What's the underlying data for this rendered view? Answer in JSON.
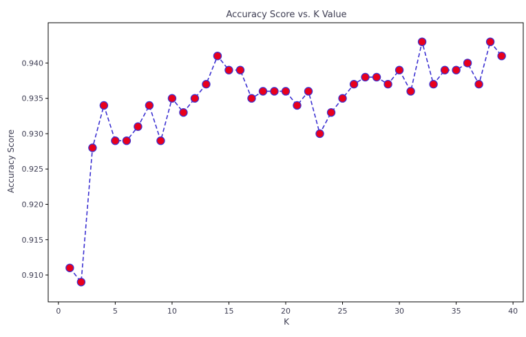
{
  "chart_data": {
    "type": "line",
    "title": "Accuracy Score vs. K Value",
    "xlabel": "K",
    "ylabel": "Accuracy Score",
    "xlim": [
      -0.9,
      40.9
    ],
    "ylim": [
      0.9062,
      0.9457
    ],
    "xticks": [
      0,
      5,
      10,
      15,
      20,
      25,
      30,
      35,
      40
    ],
    "xtick_labels": [
      "0",
      "5",
      "10",
      "15",
      "20",
      "25",
      "30",
      "35",
      "40"
    ],
    "yticks": [
      0.91,
      0.915,
      0.92,
      0.925,
      0.93,
      0.935,
      0.94
    ],
    "ytick_labels": [
      "0.910",
      "0.915",
      "0.920",
      "0.925",
      "0.930",
      "0.935",
      "0.940"
    ],
    "grid": false,
    "line_style": "dashed",
    "line_color": "#3a2fd1",
    "marker_face_color": "#e8001c",
    "marker_edge_color": "#3a2fd1",
    "series": [
      {
        "x": [
          1,
          2,
          3,
          4,
          5,
          6,
          7,
          8,
          9,
          10,
          11,
          12,
          13,
          14,
          15,
          16,
          17,
          18,
          19,
          20,
          21,
          22,
          23,
          24,
          25,
          26,
          27,
          28,
          29,
          30,
          31,
          32,
          33,
          34,
          35,
          36,
          37,
          38,
          39
        ],
        "values": [
          0.911,
          0.909,
          0.928,
          0.934,
          0.929,
          0.929,
          0.931,
          0.934,
          0.929,
          0.935,
          0.933,
          0.935,
          0.937,
          0.941,
          0.939,
          0.939,
          0.935,
          0.936,
          0.936,
          0.936,
          0.934,
          0.936,
          0.93,
          0.933,
          0.935,
          0.937,
          0.938,
          0.938,
          0.937,
          0.939,
          0.936,
          0.943,
          0.937,
          0.939,
          0.939,
          0.94,
          0.937,
          0.943,
          0.941
        ]
      }
    ]
  }
}
